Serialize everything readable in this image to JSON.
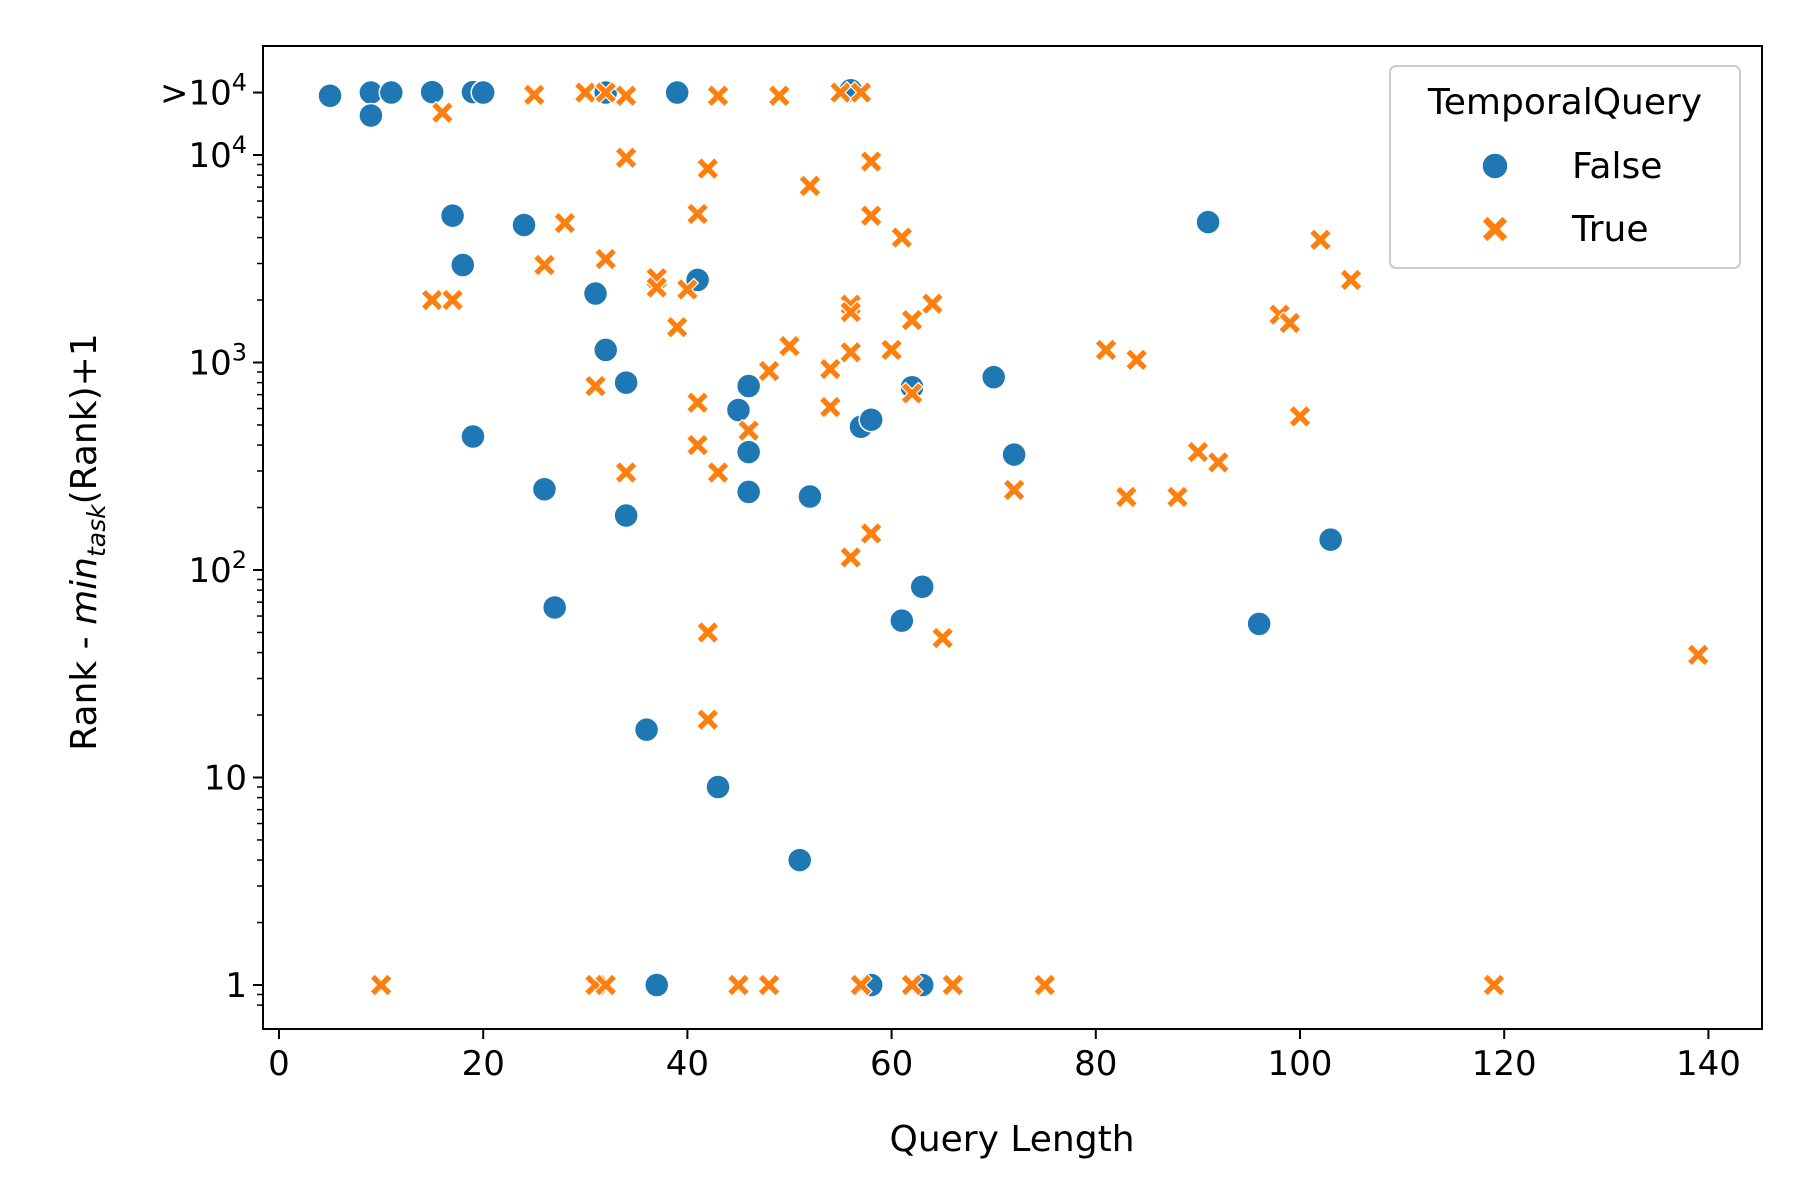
{
  "chart_data": {
    "type": "scatter",
    "title": "",
    "xlabel": "Query Length",
    "ylabel": "Rank - min_task(Rank)+1",
    "ylabel_parts": {
      "pre": "Rank - ",
      "italic": "min",
      "sub": "task",
      "post": "(Rank)+1"
    },
    "xlim": [
      -2,
      146
    ],
    "ylim": [
      0.7,
      27000
    ],
    "yscale": "log",
    "x_ticks": [
      0,
      20,
      40,
      60,
      80,
      100,
      120,
      140
    ],
    "x_tick_labels": [
      "0",
      "20",
      "40",
      "60",
      "80",
      "100",
      "120",
      "140"
    ],
    "y_ticks": [
      {
        "value": 1,
        "label": "1"
      },
      {
        "value": 10,
        "label": "10"
      },
      {
        "value": 100,
        "label": "10",
        "sup": "2"
      },
      {
        "value": 1000,
        "label": "10",
        "sup": "3"
      },
      {
        "value": 10000,
        "label": "10",
        "sup": "4"
      },
      {
        "value": 20000,
        "label": ">10",
        "sup": "4"
      }
    ],
    "grid": false,
    "legend": {
      "title": "TemporalQuery",
      "position": "top-right"
    },
    "series": [
      {
        "name": "False",
        "color": "#1f77b4",
        "marker": "circle",
        "points": [
          {
            "x": 5,
            "y": 19300
          },
          {
            "x": 9,
            "y": 20000
          },
          {
            "x": 9,
            "y": 15500
          },
          {
            "x": 11,
            "y": 20000
          },
          {
            "x": 15,
            "y": 20100
          },
          {
            "x": 19,
            "y": 20100
          },
          {
            "x": 20,
            "y": 20000
          },
          {
            "x": 32,
            "y": 20000
          },
          {
            "x": 39,
            "y": 20000
          },
          {
            "x": 56,
            "y": 20500
          },
          {
            "x": 17,
            "y": 5100
          },
          {
            "x": 24,
            "y": 4600
          },
          {
            "x": 18,
            "y": 2950
          },
          {
            "x": 31,
            "y": 2150
          },
          {
            "x": 41,
            "y": 2500
          },
          {
            "x": 32,
            "y": 1150
          },
          {
            "x": 34,
            "y": 800
          },
          {
            "x": 46,
            "y": 770
          },
          {
            "x": 45,
            "y": 590
          },
          {
            "x": 57,
            "y": 490
          },
          {
            "x": 58,
            "y": 530
          },
          {
            "x": 19,
            "y": 440
          },
          {
            "x": 46,
            "y": 370
          },
          {
            "x": 26,
            "y": 245
          },
          {
            "x": 46,
            "y": 238
          },
          {
            "x": 52,
            "y": 226
          },
          {
            "x": 34,
            "y": 183
          },
          {
            "x": 62,
            "y": 760
          },
          {
            "x": 70,
            "y": 850
          },
          {
            "x": 72,
            "y": 360
          },
          {
            "x": 91,
            "y": 4750
          },
          {
            "x": 103,
            "y": 140
          },
          {
            "x": 63,
            "y": 83
          },
          {
            "x": 27,
            "y": 66
          },
          {
            "x": 61,
            "y": 57
          },
          {
            "x": 96,
            "y": 55
          },
          {
            "x": 36,
            "y": 17
          },
          {
            "x": 43,
            "y": 9
          },
          {
            "x": 51,
            "y": 4
          },
          {
            "x": 37,
            "y": 1
          },
          {
            "x": 58,
            "y": 1
          },
          {
            "x": 63,
            "y": 1
          }
        ]
      },
      {
        "name": "True",
        "color": "#ff7f0e",
        "marker": "x",
        "points": [
          {
            "x": 16,
            "y": 16000
          },
          {
            "x": 25,
            "y": 19500
          },
          {
            "x": 30,
            "y": 20000
          },
          {
            "x": 32,
            "y": 20000
          },
          {
            "x": 34,
            "y": 19300
          },
          {
            "x": 43,
            "y": 19300
          },
          {
            "x": 49,
            "y": 19300
          },
          {
            "x": 55,
            "y": 20000
          },
          {
            "x": 57,
            "y": 20000
          },
          {
            "x": 34,
            "y": 9700
          },
          {
            "x": 42,
            "y": 8600
          },
          {
            "x": 58,
            "y": 9300
          },
          {
            "x": 52,
            "y": 7100
          },
          {
            "x": 41,
            "y": 5200
          },
          {
            "x": 58,
            "y": 5100
          },
          {
            "x": 28,
            "y": 4700
          },
          {
            "x": 61,
            "y": 4000
          },
          {
            "x": 102,
            "y": 3900
          },
          {
            "x": 26,
            "y": 2950
          },
          {
            "x": 32,
            "y": 3150
          },
          {
            "x": 37,
            "y": 2550
          },
          {
            "x": 37,
            "y": 2300
          },
          {
            "x": 40,
            "y": 2250
          },
          {
            "x": 105,
            "y": 2500
          },
          {
            "x": 15,
            "y": 2000
          },
          {
            "x": 17,
            "y": 2000
          },
          {
            "x": 56,
            "y": 1900
          },
          {
            "x": 56,
            "y": 1750
          },
          {
            "x": 64,
            "y": 1920
          },
          {
            "x": 62,
            "y": 1600
          },
          {
            "x": 98,
            "y": 1700
          },
          {
            "x": 99,
            "y": 1550
          },
          {
            "x": 39,
            "y": 1480
          },
          {
            "x": 50,
            "y": 1200
          },
          {
            "x": 56,
            "y": 1120
          },
          {
            "x": 60,
            "y": 1150
          },
          {
            "x": 81,
            "y": 1150
          },
          {
            "x": 84,
            "y": 1030
          },
          {
            "x": 54,
            "y": 930
          },
          {
            "x": 48,
            "y": 910
          },
          {
            "x": 31,
            "y": 770
          },
          {
            "x": 62,
            "y": 710
          },
          {
            "x": 41,
            "y": 640
          },
          {
            "x": 54,
            "y": 610
          },
          {
            "x": 100,
            "y": 550
          },
          {
            "x": 46,
            "y": 470
          },
          {
            "x": 41,
            "y": 400
          },
          {
            "x": 90,
            "y": 370
          },
          {
            "x": 92,
            "y": 330
          },
          {
            "x": 34,
            "y": 295
          },
          {
            "x": 43,
            "y": 295
          },
          {
            "x": 72,
            "y": 243
          },
          {
            "x": 83,
            "y": 225
          },
          {
            "x": 88,
            "y": 225
          },
          {
            "x": 58,
            "y": 150
          },
          {
            "x": 56,
            "y": 115
          },
          {
            "x": 65,
            "y": 47
          },
          {
            "x": 42,
            "y": 50
          },
          {
            "x": 139,
            "y": 39
          },
          {
            "x": 42,
            "y": 19
          },
          {
            "x": 10,
            "y": 1
          },
          {
            "x": 31,
            "y": 1
          },
          {
            "x": 32,
            "y": 1
          },
          {
            "x": 45,
            "y": 1
          },
          {
            "x": 48,
            "y": 1
          },
          {
            "x": 57,
            "y": 1
          },
          {
            "x": 62,
            "y": 1
          },
          {
            "x": 66,
            "y": 1
          },
          {
            "x": 75,
            "y": 1
          },
          {
            "x": 119,
            "y": 1
          }
        ]
      }
    ]
  }
}
